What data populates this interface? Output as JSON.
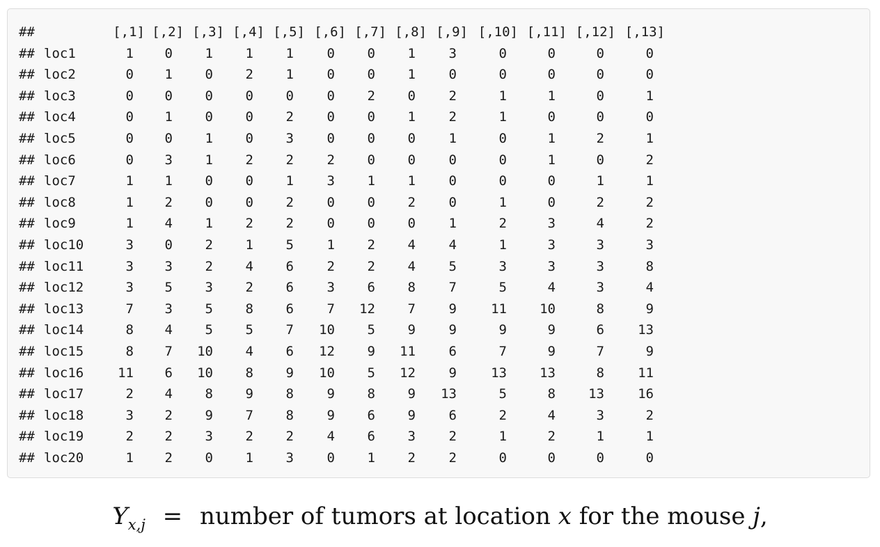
{
  "matrix": {
    "prompt": "##",
    "col_headers": [
      "[,1]",
      "[,2]",
      "[,3]",
      "[,4]",
      "[,5]",
      "[,6]",
      "[,7]",
      "[,8]",
      "[,9]",
      "[,10]",
      "[,11]",
      "[,12]",
      "[,13]"
    ],
    "rows": [
      {
        "label": "loc1",
        "values": [
          1,
          0,
          1,
          1,
          1,
          0,
          0,
          1,
          3,
          0,
          0,
          0,
          0
        ]
      },
      {
        "label": "loc2",
        "values": [
          0,
          1,
          0,
          2,
          1,
          0,
          0,
          1,
          0,
          0,
          0,
          0,
          0
        ]
      },
      {
        "label": "loc3",
        "values": [
          0,
          0,
          0,
          0,
          0,
          0,
          2,
          0,
          2,
          1,
          1,
          0,
          1
        ]
      },
      {
        "label": "loc4",
        "values": [
          0,
          1,
          0,
          0,
          2,
          0,
          0,
          1,
          2,
          1,
          0,
          0,
          0
        ]
      },
      {
        "label": "loc5",
        "values": [
          0,
          0,
          1,
          0,
          3,
          0,
          0,
          0,
          1,
          0,
          1,
          2,
          1
        ]
      },
      {
        "label": "loc6",
        "values": [
          0,
          3,
          1,
          2,
          2,
          2,
          0,
          0,
          0,
          0,
          1,
          0,
          2
        ]
      },
      {
        "label": "loc7",
        "values": [
          1,
          1,
          0,
          0,
          1,
          3,
          1,
          1,
          0,
          0,
          0,
          1,
          1
        ]
      },
      {
        "label": "loc8",
        "values": [
          1,
          2,
          0,
          0,
          2,
          0,
          0,
          2,
          0,
          1,
          0,
          2,
          2
        ]
      },
      {
        "label": "loc9",
        "values": [
          1,
          4,
          1,
          2,
          2,
          0,
          0,
          0,
          1,
          2,
          3,
          4,
          2
        ]
      },
      {
        "label": "loc10",
        "values": [
          3,
          0,
          2,
          1,
          5,
          1,
          2,
          4,
          4,
          1,
          3,
          3,
          3
        ]
      },
      {
        "label": "loc11",
        "values": [
          3,
          3,
          2,
          4,
          6,
          2,
          2,
          4,
          5,
          3,
          3,
          3,
          8
        ]
      },
      {
        "label": "loc12",
        "values": [
          3,
          5,
          3,
          2,
          6,
          3,
          6,
          8,
          7,
          5,
          4,
          3,
          4
        ]
      },
      {
        "label": "loc13",
        "values": [
          7,
          3,
          5,
          8,
          6,
          7,
          12,
          7,
          9,
          11,
          10,
          8,
          9
        ]
      },
      {
        "label": "loc14",
        "values": [
          8,
          4,
          5,
          5,
          7,
          10,
          5,
          9,
          9,
          9,
          9,
          6,
          13
        ]
      },
      {
        "label": "loc15",
        "values": [
          8,
          7,
          10,
          4,
          6,
          12,
          9,
          11,
          6,
          7,
          9,
          7,
          9
        ]
      },
      {
        "label": "loc16",
        "values": [
          11,
          6,
          10,
          8,
          9,
          10,
          5,
          12,
          9,
          13,
          13,
          8,
          11
        ]
      },
      {
        "label": "loc17",
        "values": [
          2,
          4,
          8,
          9,
          8,
          9,
          8,
          9,
          13,
          5,
          8,
          13,
          16
        ]
      },
      {
        "label": "loc18",
        "values": [
          3,
          2,
          9,
          7,
          8,
          9,
          6,
          9,
          6,
          2,
          4,
          3,
          2
        ]
      },
      {
        "label": "loc19",
        "values": [
          2,
          2,
          3,
          2,
          2,
          4,
          6,
          3,
          2,
          1,
          2,
          1,
          1
        ]
      },
      {
        "label": "loc20",
        "values": [
          1,
          2,
          0,
          1,
          3,
          0,
          1,
          2,
          2,
          0,
          0,
          0,
          0
        ]
      }
    ]
  },
  "formula": {
    "var": "Y",
    "subscript": "x,j",
    "equals": "=",
    "text_before": "number of tumors at location",
    "var_x": "x",
    "text_mid": "for the mouse",
    "var_j": "j",
    "trailing": ","
  }
}
